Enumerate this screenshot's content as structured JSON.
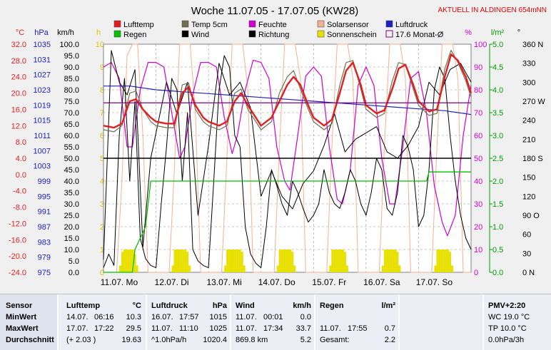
{
  "title": "Woche 11.07.05 - 17.07.05 (KW28)",
  "top_right_label": "AKTUELL IN ALDINGEN 654mNN",
  "colors": {
    "temp": "#e02020",
    "pressure": "#2020c0",
    "wind": "#000000",
    "humidity": "#d000d0",
    "rain": "#00c000",
    "solar": "#f4b090",
    "sun": "#e8e000",
    "temp5": "#707050",
    "sun_scale": "#e0c000",
    "percent": "#d000d0",
    "rain_scale": "#00a000",
    "bg": "#f0f0f0",
    "month_avg": "#800080"
  },
  "axis_headers": {
    "temp": "°C",
    "pressure": "hPa",
    "wind": "km/h",
    "sun": "h",
    "percent": "%",
    "rain": "l/m²",
    "direction": "°"
  },
  "axis_ticks": {
    "temp": [
      "32.0",
      "28.0",
      "24.0",
      "20.0",
      "16.0",
      "12.0",
      "8.0",
      "4.0",
      "0.0",
      "-4.0",
      "-8.0",
      "-12.0",
      "-16.0",
      "-20.0",
      "-24.0"
    ],
    "pressure": [
      "1035",
      "1031",
      "1027",
      "1023",
      "1019",
      "1015",
      "1011",
      "1007",
      "1003",
      "999",
      "995",
      "991",
      "987",
      "983",
      "979",
      "975"
    ],
    "wind": [
      "100.0",
      "95.0",
      "90.0",
      "85.0",
      "80.0",
      "75.0",
      "70.0",
      "65.0",
      "60.0",
      "55.0",
      "50.0",
      "45.0",
      "40.0",
      "35.0",
      "30.0",
      "25.0",
      "20.0",
      "15.0",
      "10.0",
      "5.0",
      "0.0"
    ],
    "sun": [
      "10",
      "9",
      "8",
      "7",
      "6",
      "5",
      "4",
      "3",
      "2",
      "1",
      "0"
    ],
    "percent": [
      "100",
      "90",
      "80",
      "70",
      "60",
      "50",
      "40",
      "30",
      "20",
      "10",
      "0"
    ],
    "rain": [
      "5.0",
      "4.5",
      "4.0",
      "3.5",
      "3.0",
      "2.5",
      "2.0",
      "1.5",
      "1.0",
      "0.5",
      "0.0"
    ],
    "direction": [
      "360 N",
      "330",
      "300",
      "270 W",
      "240",
      "210",
      "180 S",
      "150",
      "120",
      "90 O",
      "60",
      "30",
      "0 N"
    ]
  },
  "legend": [
    {
      "label": "Lufttemp",
      "color": "#e02020",
      "type": "box"
    },
    {
      "label": "Temp 5cm",
      "color": "#707050",
      "type": "box"
    },
    {
      "label": "Feuchte",
      "color": "#d000d0",
      "type": "box"
    },
    {
      "label": "Solarsensor",
      "color": "#f4b090",
      "type": "box"
    },
    {
      "label": "Luftdruck",
      "color": "#2020c0",
      "type": "box"
    },
    {
      "label": "Regen",
      "color": "#00c000",
      "type": "box"
    },
    {
      "label": "Wind",
      "color": "#000000",
      "type": "box"
    },
    {
      "label": "Richtung",
      "color": "#000000",
      "type": "box"
    },
    {
      "label": "Sonnenschein",
      "color": "#e8e000",
      "type": "box"
    },
    {
      "label": "17.6 Monat-Ø",
      "color": "#800080",
      "type": "line"
    }
  ],
  "chart_data": {
    "type": "line",
    "title": "Woche 11.07.05 - 17.07.05 (KW28)",
    "x_labels": [
      "11.07. Mo",
      "12.07. Di",
      "13.07. Mi",
      "14.07. Do",
      "15.07. Fr",
      "16.07. Sa",
      "17.07. So"
    ],
    "x_range_days": [
      0,
      7
    ],
    "ylim_temp": [
      -24,
      32
    ],
    "ylim_pressure": [
      975,
      1035
    ],
    "ylim_wind": [
      0,
      100
    ],
    "ylim_sun": [
      0,
      10
    ],
    "ylim_percent": [
      0,
      100
    ],
    "ylim_rain": [
      0,
      5
    ],
    "ylim_direction": [
      0,
      360
    ],
    "grid": true,
    "month_avg_temp": 17.6,
    "series": [
      {
        "name": "Lufttemp",
        "key": "temp",
        "axis": "temp",
        "color": "#e02020",
        "x": [
          0,
          0.2,
          0.35,
          0.5,
          0.62,
          0.75,
          0.9,
          1.0,
          1.2,
          1.35,
          1.5,
          1.62,
          1.75,
          1.9,
          2.0,
          2.2,
          2.35,
          2.5,
          2.62,
          2.75,
          2.9,
          3.0,
          3.2,
          3.35,
          3.5,
          3.62,
          3.75,
          3.9,
          4.0,
          4.2,
          4.35,
          4.5,
          4.62,
          4.75,
          4.9,
          5.0,
          5.2,
          5.35,
          5.5,
          5.62,
          5.75,
          5.9,
          6.0,
          6.2,
          6.35,
          6.5,
          6.62,
          6.75,
          6.9,
          7.0
        ],
        "y": [
          12,
          11.5,
          12.5,
          18,
          18.5,
          16,
          14,
          13,
          12.5,
          12.5,
          20,
          21.5,
          17,
          14,
          13,
          12,
          13,
          18,
          20,
          17,
          14,
          12,
          14,
          18,
          22,
          24,
          22,
          17,
          14,
          12,
          13.5,
          20,
          25.5,
          27.5,
          22,
          17,
          15,
          15.8,
          21,
          26,
          27,
          22,
          18,
          15.5,
          16,
          24,
          29.5,
          28,
          24,
          20
        ]
      },
      {
        "name": "Temp 5cm",
        "key": "temp5",
        "axis": "temp",
        "color": "#707050",
        "x": [
          0,
          0.2,
          0.35,
          0.5,
          0.62,
          0.75,
          0.9,
          1.0,
          1.2,
          1.35,
          1.5,
          1.62,
          1.75,
          1.9,
          2.0,
          2.2,
          2.35,
          2.5,
          2.62,
          2.75,
          2.9,
          3.0,
          3.2,
          3.35,
          3.5,
          3.62,
          3.75,
          3.9,
          4.0,
          4.2,
          4.35,
          4.5,
          4.62,
          4.75,
          4.9,
          5.0,
          5.2,
          5.35,
          5.5,
          5.62,
          5.75,
          5.9,
          6.0,
          6.2,
          6.35,
          6.5,
          6.62,
          6.75,
          6.9,
          7.0
        ],
        "y": [
          11,
          10.5,
          12,
          20,
          20.5,
          16,
          13,
          12,
          11.5,
          11.5,
          22,
          22.5,
          16,
          13,
          12,
          11,
          12,
          20,
          21,
          16,
          13,
          11,
          13,
          20,
          24,
          25.5,
          21,
          16,
          13,
          11,
          12.5,
          22,
          27.5,
          28,
          21,
          16,
          14,
          15,
          23,
          27.5,
          27,
          21,
          17,
          14.5,
          15,
          26,
          30.5,
          27.5,
          23,
          19
        ]
      },
      {
        "name": "Feuchte",
        "key": "hum",
        "axis": "percent",
        "color": "#d000d0",
        "x": [
          0,
          0.15,
          0.3,
          0.45,
          0.55,
          0.7,
          0.85,
          1.0,
          1.15,
          1.3,
          1.45,
          1.55,
          1.7,
          1.85,
          2.0,
          2.15,
          2.3,
          2.45,
          2.55,
          2.7,
          2.85,
          3.0,
          3.15,
          3.3,
          3.45,
          3.55,
          3.7,
          3.85,
          4.0,
          4.15,
          4.3,
          4.45,
          4.55,
          4.7,
          4.85,
          5.0,
          5.15,
          5.3,
          5.45,
          5.55,
          5.7,
          5.85,
          6.0,
          6.15,
          6.3,
          6.45,
          6.55,
          6.7,
          6.85,
          7.0
        ],
        "y": [
          90,
          92,
          85,
          55,
          55,
          80,
          92,
          92,
          90,
          70,
          50,
          55,
          78,
          92,
          92,
          90,
          68,
          52,
          60,
          80,
          93,
          92,
          85,
          55,
          40,
          36,
          60,
          86,
          90,
          86,
          55,
          32,
          30,
          45,
          82,
          90,
          82,
          50,
          30,
          30,
          55,
          85,
          88,
          70,
          38,
          22,
          16,
          25,
          60,
          82
        ]
      },
      {
        "name": "Luftdruck",
        "key": "press",
        "axis": "pressure",
        "color": "#2020c0",
        "x": [
          0,
          0.5,
          1.0,
          1.5,
          2.0,
          2.5,
          3.0,
          3.5,
          4.0,
          4.5,
          5.0,
          5.5,
          6.0,
          6.5,
          7.0
        ],
        "y": [
          1024,
          1024,
          1023,
          1022.5,
          1022,
          1021.5,
          1021,
          1020.5,
          1020,
          1019.5,
          1019,
          1018.5,
          1018,
          1017.5,
          1016.5
        ]
      },
      {
        "name": "Wind",
        "key": "wind",
        "axis": "wind",
        "color": "#000000",
        "x": [
          0,
          0.1,
          0.2,
          0.3,
          0.4,
          0.5,
          0.6,
          0.7,
          0.8,
          0.9,
          1.0,
          1.1,
          1.2,
          1.3,
          1.4,
          1.5,
          1.6,
          1.7,
          1.8,
          1.9,
          2.0,
          2.1,
          2.2,
          2.3,
          2.4,
          2.5,
          2.6,
          2.7,
          2.8,
          2.9,
          3.0,
          3.1,
          3.2,
          3.3,
          3.4,
          3.5,
          3.6,
          3.7,
          3.8,
          3.9,
          4.0,
          4.1,
          4.2,
          4.3,
          4.4,
          4.5,
          4.6,
          4.7,
          4.8,
          4.9,
          5.0,
          5.1,
          5.2,
          5.3,
          5.4,
          5.5,
          5.6,
          5.7,
          5.8,
          5.9,
          6.0,
          6.1,
          6.2,
          6.3,
          6.4,
          6.5,
          6.6,
          6.7,
          6.8,
          6.9,
          7.0
        ],
        "y": [
          2,
          8,
          3,
          60,
          85,
          40,
          75,
          15,
          6,
          3,
          2,
          30,
          55,
          85,
          80,
          40,
          70,
          10,
          5,
          3,
          2,
          40,
          80,
          95,
          90,
          60,
          55,
          20,
          8,
          4,
          2,
          20,
          45,
          38,
          30,
          25,
          40,
          35,
          28,
          22,
          25,
          30,
          45,
          35,
          30,
          28,
          35,
          45,
          40,
          30,
          25,
          35,
          50,
          45,
          28,
          25,
          35,
          60,
          55,
          45,
          20,
          25,
          45,
          80,
          90,
          85,
          60,
          40,
          25,
          15,
          10
        ]
      },
      {
        "name": "Richtung",
        "key": "dir",
        "axis": "direction",
        "color": "#000000",
        "x": [
          0,
          0.15,
          0.3,
          0.45,
          0.6,
          0.75,
          0.9,
          1.0,
          1.2,
          1.4,
          1.6,
          1.8,
          2.0,
          2.2,
          2.4,
          2.6,
          2.8,
          3.0,
          3.2,
          3.4,
          3.6,
          3.8,
          4.0,
          4.2,
          4.4,
          4.6,
          4.8,
          5.0,
          5.2,
          5.4,
          5.6,
          5.8,
          6.0,
          6.2,
          6.4,
          6.6,
          6.8,
          7.0
        ],
        "y": [
          20,
          350,
          300,
          280,
          320,
          40,
          180,
          220,
          300,
          250,
          300,
          90,
          200,
          330,
          280,
          300,
          260,
          120,
          160,
          120,
          100,
          140,
          160,
          200,
          250,
          190,
          210,
          220,
          230,
          190,
          180,
          200,
          230,
          300,
          280,
          320,
          330,
          300
        ]
      },
      {
        "name": "Regen",
        "key": "rain",
        "axis": "rain",
        "color": "#00c000",
        "x": [
          0,
          0.55,
          0.6,
          0.8,
          0.9,
          1.0,
          6.0,
          6.15,
          6.2,
          7.0
        ],
        "y": [
          0,
          0,
          0.5,
          1.0,
          2.0,
          2.0,
          2.0,
          2.0,
          2.2,
          2.2
        ]
      },
      {
        "name": "Solarsensor",
        "key": "solar",
        "axis": "percent",
        "color": "#f4b090",
        "x": [
          0,
          0.25,
          0.35,
          0.45,
          0.55,
          0.65,
          0.75,
          0.85,
          1.0,
          1.25,
          1.35,
          1.45,
          1.55,
          1.65,
          1.75,
          1.85,
          2.0,
          2.25,
          2.35,
          2.45,
          2.55,
          2.65,
          2.75,
          2.85,
          3.0,
          3.25,
          3.35,
          3.45,
          3.55,
          3.65,
          3.75,
          3.85,
          4.0,
          4.25,
          4.35,
          4.45,
          4.55,
          4.65,
          4.75,
          4.85,
          5.0,
          5.25,
          5.35,
          5.45,
          5.55,
          5.65,
          5.75,
          5.85,
          6.0,
          6.25,
          6.35,
          6.45,
          6.55,
          6.65,
          6.75,
          6.85,
          7.0
        ],
        "y": [
          0,
          0,
          40,
          95,
          100,
          100,
          60,
          0,
          0,
          0,
          45,
          100,
          100,
          100,
          70,
          0,
          0,
          0,
          50,
          100,
          100,
          100,
          80,
          0,
          0,
          0,
          55,
          100,
          100,
          100,
          85,
          0,
          0,
          0,
          55,
          100,
          100,
          100,
          85,
          0,
          0,
          0,
          55,
          100,
          100,
          100,
          85,
          0,
          0,
          0,
          55,
          100,
          100,
          100,
          85,
          0,
          0
        ]
      },
      {
        "name": "Sonnenschein",
        "key": "sun",
        "axis": "sun",
        "color": "#e8e000",
        "type": "bar",
        "x": [
          0.32,
          0.36,
          0.4,
          0.44,
          0.48,
          0.52,
          0.56,
          0.6,
          0.64,
          1.32,
          1.36,
          1.4,
          1.44,
          1.48,
          1.52,
          1.56,
          1.6,
          1.64,
          2.32,
          2.36,
          2.4,
          2.44,
          2.48,
          2.52,
          2.56,
          2.6,
          2.64,
          2.68,
          3.32,
          3.36,
          3.4,
          3.44,
          3.48,
          3.52,
          3.56,
          3.6,
          3.64,
          4.32,
          4.36,
          4.4,
          4.44,
          4.48,
          4.52,
          4.56,
          4.6,
          4.64,
          5.32,
          5.36,
          5.4,
          5.44,
          5.48,
          5.52,
          5.56,
          5.6,
          5.64,
          6.32,
          6.36,
          6.4,
          6.44,
          6.48,
          6.52,
          6.56,
          6.6,
          6.64
        ],
        "y": [
          0.3,
          0.9,
          1.0,
          1.0,
          1.0,
          1.0,
          1.0,
          0.8,
          0.3,
          0.3,
          1.0,
          1.0,
          1.0,
          1.0,
          1.0,
          1.0,
          0.9,
          0.3,
          0.3,
          1.0,
          1.0,
          1.0,
          1.0,
          1.0,
          1.0,
          1.0,
          0.9,
          0.3,
          0.3,
          1.0,
          1.0,
          1.0,
          1.0,
          1.0,
          1.0,
          0.9,
          0.3,
          0.3,
          1.0,
          1.0,
          1.0,
          1.0,
          1.0,
          1.0,
          0.9,
          0.3,
          0.3,
          1.0,
          1.0,
          1.0,
          1.0,
          1.0,
          1.0,
          0.9,
          0.3,
          0.3,
          1.0,
          1.0,
          1.0,
          1.0,
          1.0,
          1.0,
          0.9,
          0.3
        ]
      }
    ]
  },
  "table": {
    "sensor": {
      "header": "Sensor",
      "rows": [
        "MinWert",
        "MaxWert",
        "Durchschnitt"
      ]
    },
    "lufttemp": {
      "header": "Lufttemp",
      "unit": "°C",
      "rows": [
        [
          "14.07.",
          "06:16",
          "10.3"
        ],
        [
          "17.07.",
          "17:22",
          "29.5"
        ],
        [
          "(+ 2.03 )",
          "",
          "19.63"
        ]
      ]
    },
    "luftdruck": {
      "header": "Luftdruck",
      "unit": "hPa",
      "rows": [
        [
          "16.07.",
          "17:57",
          "1015"
        ],
        [
          "11.07.",
          "11:10",
          "1025"
        ],
        [
          "^1.0hPa/h",
          "",
          "1020.4"
        ]
      ]
    },
    "wind": {
      "header": "Wind",
      "unit": "km/h",
      "rows": [
        [
          "11.07.",
          "00:01",
          "0.0"
        ],
        [
          "11.07.",
          "17:34",
          "33.7"
        ],
        [
          "869.8 km",
          "",
          "5.2"
        ]
      ]
    },
    "regen": {
      "header": "Regen",
      "unit": "l/m²",
      "rows": [
        [
          "",
          "",
          ""
        ],
        [
          "11.07.",
          "17:55",
          "0.7"
        ],
        [
          "Gesamt:",
          "",
          "2.2"
        ]
      ]
    },
    "pmv": {
      "header": "PMV+2:20",
      "rows": [
        "WC 19.0 °C",
        "TP 10.0 °C",
        "0.0hPa/3h"
      ]
    }
  }
}
